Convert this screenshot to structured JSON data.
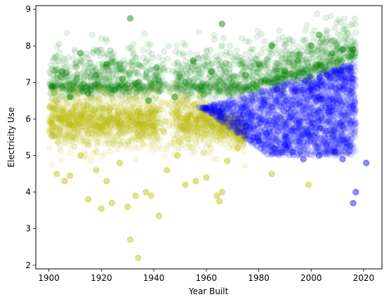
{
  "chart_data": {
    "type": "scatter",
    "title": "",
    "xlabel": "Year Built",
    "ylabel": "Electricity Use",
    "xlim": [
      1895,
      2027
    ],
    "ylim": [
      1.9,
      9.1
    ],
    "xticks": [
      1900,
      1920,
      1940,
      1960,
      1980,
      2000,
      2020
    ],
    "yticks": [
      2,
      3,
      4,
      5,
      6,
      7,
      8,
      9
    ],
    "grid": false,
    "legend": "none",
    "point_alpha": 0.1,
    "series": [
      {
        "color": "#008000",
        "description_points": [
          [
            1901,
            6.9
          ],
          [
            1905,
            7.3
          ],
          [
            1908,
            6.6
          ],
          [
            1912,
            7.8
          ],
          [
            1915,
            6.7
          ],
          [
            1918,
            7.2
          ],
          [
            1922,
            7.5
          ],
          [
            1925,
            6.8
          ],
          [
            1928,
            7.1
          ],
          [
            1931,
            8.75
          ],
          [
            1934,
            7.0
          ],
          [
            1938,
            6.5
          ],
          [
            1941,
            7.4
          ],
          [
            1948,
            6.6
          ],
          [
            1952,
            7.0
          ],
          [
            1955,
            7.6
          ],
          [
            1958,
            6.9
          ],
          [
            1962,
            7.3
          ],
          [
            1966,
            8.6
          ],
          [
            1970,
            7.0
          ],
          [
            1975,
            7.2
          ],
          [
            1980,
            7.5
          ],
          [
            1985,
            8.0
          ],
          [
            1990,
            7.3
          ],
          [
            1995,
            7.6
          ],
          [
            2000,
            8.0
          ],
          [
            2003,
            8.3
          ],
          [
            2008,
            7.8
          ],
          [
            2012,
            7.9
          ],
          [
            2016,
            7.9
          ]
        ]
      },
      {
        "color": "#bfbf00",
        "description_points": [
          [
            1901,
            5.9
          ],
          [
            1903,
            4.5
          ],
          [
            1906,
            4.3
          ],
          [
            1908,
            4.45
          ],
          [
            1912,
            5.0
          ],
          [
            1915,
            3.8
          ],
          [
            1918,
            4.6
          ],
          [
            1920,
            3.55
          ],
          [
            1922,
            4.3
          ],
          [
            1924,
            3.7
          ],
          [
            1927,
            4.8
          ],
          [
            1930,
            3.6
          ],
          [
            1931,
            2.7
          ],
          [
            1933,
            3.9
          ],
          [
            1934,
            2.2
          ],
          [
            1937,
            4.0
          ],
          [
            1939,
            3.9
          ],
          [
            1942,
            3.35
          ],
          [
            1945,
            4.6
          ],
          [
            1949,
            5.0
          ],
          [
            1952,
            4.2
          ],
          [
            1956,
            4.3
          ],
          [
            1960,
            4.4
          ],
          [
            1964,
            3.9
          ],
          [
            1965,
            3.75
          ],
          [
            1966,
            4.0
          ],
          [
            1968,
            4.85
          ],
          [
            1972,
            5.2
          ],
          [
            1985,
            4.5
          ],
          [
            1999,
            4.2
          ]
        ]
      },
      {
        "color": "#0000ff",
        "description_points": [
          [
            1960,
            6.3
          ],
          [
            1965,
            6.2
          ],
          [
            1970,
            5.9
          ],
          [
            1975,
            5.8
          ],
          [
            1978,
            5.5
          ],
          [
            1980,
            5.4
          ],
          [
            1983,
            5.6
          ],
          [
            1986,
            5.2
          ],
          [
            1990,
            5.3
          ],
          [
            1993,
            5.1
          ],
          [
            1997,
            4.9
          ],
          [
            2000,
            6.8
          ],
          [
            2003,
            5.0
          ],
          [
            2006,
            7.2
          ],
          [
            2009,
            5.1
          ],
          [
            2012,
            4.9
          ],
          [
            2015,
            7.4
          ],
          [
            2016,
            3.7
          ],
          [
            2017,
            4.0
          ],
          [
            2021,
            4.8
          ]
        ]
      }
    ]
  }
}
